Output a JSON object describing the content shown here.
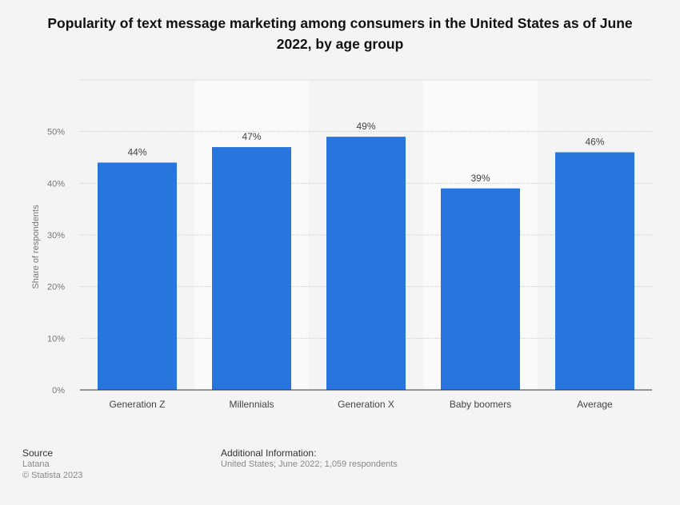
{
  "chart_data": {
    "type": "bar",
    "title": "Popularity of text message marketing among consumers in the United States as of June 2022, by age group",
    "categories": [
      "Generation Z",
      "Millennials",
      "Generation X",
      "Baby boomers",
      "Average"
    ],
    "values": [
      44,
      47,
      49,
      39,
      46
    ],
    "data_labels": [
      "44%",
      "47%",
      "49%",
      "39%",
      "46%"
    ],
    "xlabel": "",
    "ylabel": "Share of respondents",
    "ylim": [
      0,
      60
    ],
    "yticks": [
      0,
      10,
      20,
      30,
      40,
      50
    ],
    "ytick_labels": [
      "0%",
      "10%",
      "20%",
      "30%",
      "40%",
      "50%"
    ],
    "grid": true,
    "colors": {
      "bar": "#2876dd",
      "background": "#f4f4f4",
      "band": "#fafafa"
    }
  },
  "footer": {
    "source_heading": "Source",
    "source": "Latana",
    "copyright": "© Statista 2023",
    "info_heading": "Additional Information:",
    "info": "United States; June 2022; 1,059 respondents"
  }
}
